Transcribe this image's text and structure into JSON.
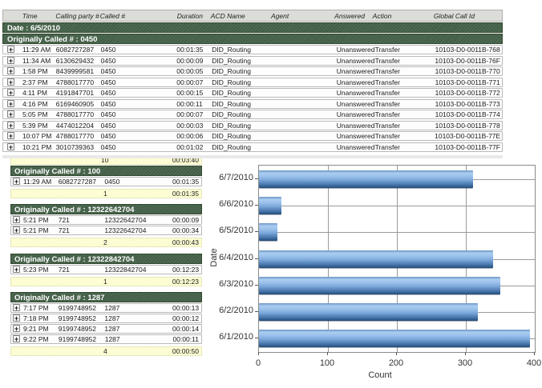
{
  "icons": {
    "expand": "+"
  },
  "table": {
    "columns": [
      "Time",
      "Calling party #",
      "Called #",
      "Duration",
      "ACD Name",
      "Agent",
      "Answered",
      "Action",
      "Global Call Id"
    ],
    "date_band": "Date : 6/5/2010",
    "groups": [
      {
        "header": "Originally Called # : 0450",
        "rows": [
          {
            "time": "11:29 AM",
            "calling": "6082727287",
            "called": "0450",
            "duration": "00:01:35",
            "acd": "DID_Routing",
            "agent": "",
            "answered": "Unanswered",
            "action": "Transfer",
            "global_id": "10103-D0-0011B-768"
          },
          {
            "time": "11:34 AM",
            "calling": "6130629432",
            "called": "0450",
            "duration": "00:00:09",
            "acd": "DID_Routing",
            "agent": "",
            "answered": "Unanswered",
            "action": "Transfer",
            "global_id": "10103-D0-0011B-76F"
          },
          {
            "time": "1:58 PM",
            "calling": "8439999581",
            "called": "0450",
            "duration": "00:00:05",
            "acd": "DID_Routing",
            "agent": "",
            "answered": "Unanswered",
            "action": "Transfer",
            "global_id": "10103-D0-0011B-770"
          },
          {
            "time": "2:37 PM",
            "calling": "4788017770",
            "called": "0450",
            "duration": "00:00:07",
            "acd": "DID_Routing",
            "agent": "",
            "answered": "Unanswered",
            "action": "Transfer",
            "global_id": "10103-D0-0011B-771"
          },
          {
            "time": "4:11 PM",
            "calling": "4191847701",
            "called": "0450",
            "duration": "00:00:15",
            "acd": "DID_Routing",
            "agent": "",
            "answered": "Unanswered",
            "action": "Transfer",
            "global_id": "10103-D0-0011B-772"
          },
          {
            "time": "4:16 PM",
            "calling": "6169460905",
            "called": "0450",
            "duration": "00:00:11",
            "acd": "DID_Routing",
            "agent": "",
            "answered": "Unanswered",
            "action": "Transfer",
            "global_id": "10103-D0-0011B-773"
          },
          {
            "time": "5:05 PM",
            "calling": "4788017770",
            "called": "0450",
            "duration": "00:00:07",
            "acd": "DID_Routing",
            "agent": "",
            "answered": "Unanswered",
            "action": "Transfer",
            "global_id": "10103-D0-0011B-774"
          },
          {
            "time": "5:39 PM",
            "calling": "4474012204",
            "called": "0450",
            "duration": "00:00:03",
            "acd": "DID_Routing",
            "agent": "",
            "answered": "Unanswered",
            "action": "Transfer",
            "global_id": "10103-D0-0011B-778"
          },
          {
            "time": "10:07 PM",
            "calling": "4788017770",
            "called": "0450",
            "duration": "00:00:06",
            "acd": "DID_Routing",
            "agent": "",
            "answered": "Unanswered",
            "action": "Transfer",
            "global_id": "10103-D0-0011B-77E"
          },
          {
            "time": "10:21 PM",
            "calling": "3010739363",
            "called": "0450",
            "duration": "00:01:02",
            "acd": "DID_Routing",
            "agent": "",
            "answered": "Unanswered",
            "action": "Transfer",
            "global_id": "10103-D0-0011B-77F"
          }
        ],
        "summary": {
          "count": "10",
          "total_duration": "00:03:40"
        }
      },
      {
        "header": "Originally Called # : 100",
        "rows": [
          {
            "time": "11:29 AM",
            "calling": "6082727287",
            "called": "0450",
            "duration": "00:01:35"
          }
        ],
        "summary": {
          "count": "1",
          "total_duration": "00:01:35"
        }
      },
      {
        "header": "Originally Called # : 12322642704",
        "rows": [
          {
            "time": "5:21 PM",
            "calling": "721",
            "called": "12322642704",
            "duration": "00:00:09"
          },
          {
            "time": "5:21 PM",
            "calling": "721",
            "called": "12322642704",
            "duration": "00:00:34"
          }
        ],
        "summary": {
          "count": "2",
          "total_duration": "00:00:43"
        }
      },
      {
        "header": "Originally Called # : 12322842704",
        "rows": [
          {
            "time": "5:23 PM",
            "calling": "721",
            "called": "12322842704",
            "duration": "00:12:23"
          }
        ],
        "summary": {
          "count": "1",
          "total_duration": "00:12:23"
        }
      },
      {
        "header": "Originally Called # : 1287",
        "rows": [
          {
            "time": "7:17 PM",
            "calling": "9199748952",
            "called": "1287",
            "duration": "00:00:13"
          },
          {
            "time": "7:18 PM",
            "calling": "9199748952",
            "called": "1287",
            "duration": "00:00:12"
          },
          {
            "time": "9:21 PM",
            "calling": "9199748952",
            "called": "1287",
            "duration": "00:00:14"
          },
          {
            "time": "9:22 PM",
            "calling": "9199748952",
            "called": "1287",
            "duration": "00:00:11"
          }
        ],
        "summary": {
          "count": "4",
          "total_duration": "00:00:50"
        }
      }
    ]
  },
  "chart_data": {
    "type": "bar",
    "orientation": "horizontal",
    "title": "",
    "categories": [
      "6/7/2010",
      "6/6/2010",
      "6/5/2010",
      "6/4/2010",
      "6/3/2010",
      "6/2/2010",
      "6/1/2010"
    ],
    "values": [
      310,
      33,
      27,
      340,
      350,
      318,
      393
    ],
    "xlabel": "Count",
    "ylabel": "Date",
    "xlim": [
      0,
      400
    ],
    "xticks": [
      0,
      100,
      200,
      300,
      400
    ],
    "grid": true,
    "legend": false,
    "bar_color": "#5b8cc6"
  }
}
